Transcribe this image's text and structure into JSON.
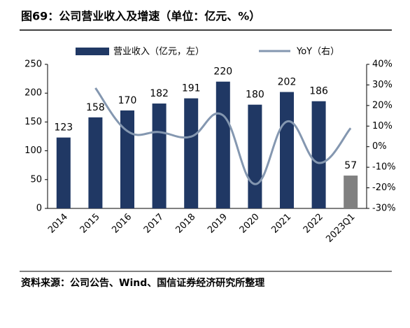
{
  "title": "图69：公司营业收入及增速（单位：亿元、%）",
  "source": "资料来源：公司公告、Wind、国信证券经济研究所整理",
  "chart_data": {
    "type": "bar-line",
    "categories": [
      "2014",
      "2015",
      "2016",
      "2017",
      "2018",
      "2019",
      "2020",
      "2021",
      "2022",
      "2023Q1"
    ],
    "series": [
      {
        "name": "营业收入（亿元，左）",
        "type": "bar",
        "color": "#203864",
        "colors": [
          "#203864",
          "#203864",
          "#203864",
          "#203864",
          "#203864",
          "#203864",
          "#203864",
          "#203864",
          "#203864",
          "#808080"
        ],
        "values": [
          123,
          158,
          170,
          182,
          191,
          220,
          180,
          202,
          186,
          57
        ]
      },
      {
        "name": "YoY（右）",
        "type": "line",
        "axis": "y2",
        "color": "#8497b0",
        "values": [
          null,
          28.5,
          7.6,
          7.1,
          4.9,
          15.2,
          -18.2,
          12.2,
          -7.9,
          9
        ]
      }
    ],
    "ylim": [
      0,
      250
    ],
    "yticks": [
      0,
      50,
      100,
      150,
      200,
      250
    ],
    "y2lim": [
      -30,
      40
    ],
    "y2ticks": [
      {
        "value": -30,
        "label": "-30%"
      },
      {
        "value": -20,
        "label": "-20%"
      },
      {
        "value": -10,
        "label": "-10%"
      },
      {
        "value": 0,
        "label": "0%"
      },
      {
        "value": 10,
        "label": "10%"
      },
      {
        "value": 20,
        "label": "20%"
      },
      {
        "value": 30,
        "label": "30%"
      },
      {
        "value": 40,
        "label": "40%"
      }
    ]
  }
}
